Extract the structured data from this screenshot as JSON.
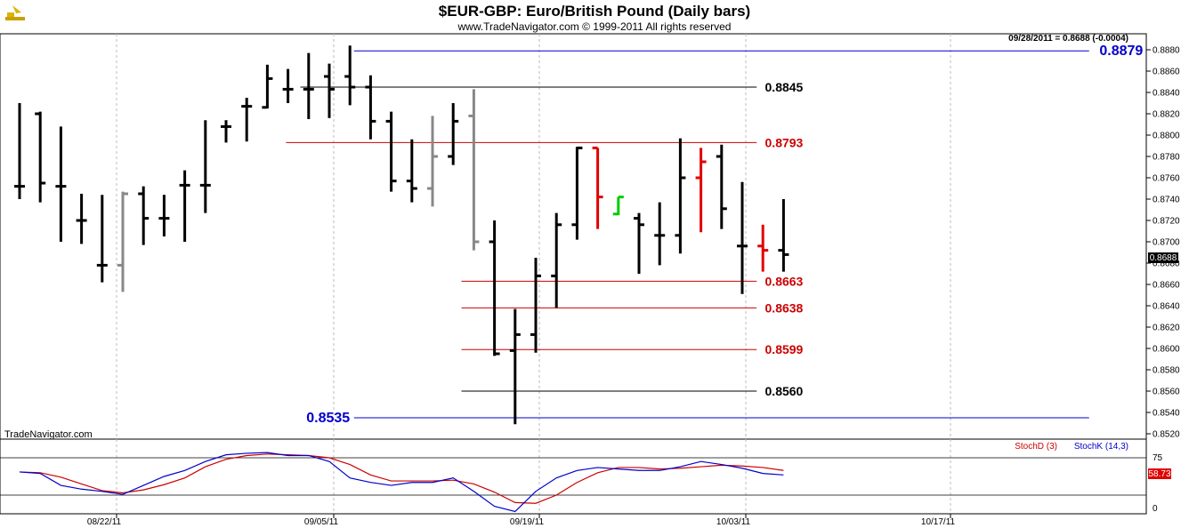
{
  "header": {
    "title": "$EUR-GBP:  Euro/British Pound  (Daily bars)",
    "subtitle": "www.TradeNavigator.com © 1999-2011 All rights reserved",
    "last_quote": "09/28/2011 = 0.8688 (-0.0004)",
    "watermark": "TradeNavigator.com"
  },
  "colors": {
    "up_bar": "#000000",
    "gray_bar": "#888888",
    "red_bar": "#e00000",
    "green_bar": "#00cc00",
    "red_level": "#cc0000",
    "blue_level": "#0000cc",
    "black_level": "#000000",
    "stoch_d": "#cc0000",
    "stoch_k": "#0000cc"
  },
  "chart_data": [
    {
      "type": "ohlc",
      "ylim": [
        0.8515,
        0.8895
      ],
      "yticks": [
        "0.8880",
        "0.8860",
        "0.8840",
        "0.8820",
        "0.8800",
        "0.8780",
        "0.8760",
        "0.8740",
        "0.8720",
        "0.8700",
        "0.8680",
        "0.8660",
        "0.8640",
        "0.8620",
        "0.8600",
        "0.8580",
        "0.8560",
        "0.8540",
        "0.8520"
      ],
      "x_labels": [
        "08/22/11",
        "09/05/11",
        "09/19/11",
        "10/03/11",
        "10/17/11"
      ],
      "last_price_label": "0.8688",
      "bars": [
        {
          "d": "08/10",
          "o": 0.8752,
          "h": 0.883,
          "l": 0.874,
          "c": 0.8752,
          "color": "black"
        },
        {
          "d": "08/11",
          "o": 0.882,
          "h": 0.8822,
          "l": 0.8737,
          "c": 0.8755,
          "color": "black"
        },
        {
          "d": "08/12",
          "o": 0.8752,
          "h": 0.8808,
          "l": 0.87,
          "c": 0.8752,
          "color": "black"
        },
        {
          "d": "08/15",
          "o": 0.872,
          "h": 0.8745,
          "l": 0.8698,
          "c": 0.872,
          "color": "black"
        },
        {
          "d": "08/16",
          "o": 0.8678,
          "h": 0.8744,
          "l": 0.8662,
          "c": 0.8678,
          "color": "black"
        },
        {
          "d": "08/17",
          "o": 0.8678,
          "h": 0.8747,
          "l": 0.8653,
          "c": 0.8745,
          "color": "gray"
        },
        {
          "d": "08/18",
          "o": 0.8745,
          "h": 0.8752,
          "l": 0.8697,
          "c": 0.8722,
          "color": "black"
        },
        {
          "d": "08/19",
          "o": 0.8722,
          "h": 0.8744,
          "l": 0.8705,
          "c": 0.8722,
          "color": "black"
        },
        {
          "d": "08/22",
          "o": 0.8753,
          "h": 0.8767,
          "l": 0.87,
          "c": 0.8753,
          "color": "black"
        },
        {
          "d": "08/23",
          "o": 0.8753,
          "h": 0.8814,
          "l": 0.8727,
          "c": 0.8753,
          "color": "black"
        },
        {
          "d": "08/24",
          "o": 0.8808,
          "h": 0.8814,
          "l": 0.8793,
          "c": 0.8808,
          "color": "black"
        },
        {
          "d": "08/25",
          "o": 0.8827,
          "h": 0.8835,
          "l": 0.8794,
          "c": 0.8827,
          "color": "black"
        },
        {
          "d": "08/26",
          "o": 0.8826,
          "h": 0.8866,
          "l": 0.8825,
          "c": 0.8853,
          "color": "black"
        },
        {
          "d": "08/29",
          "o": 0.8843,
          "h": 0.8862,
          "l": 0.883,
          "c": 0.8843,
          "color": "black"
        },
        {
          "d": "08/30",
          "o": 0.8843,
          "h": 0.8877,
          "l": 0.8815,
          "c": 0.8843,
          "color": "black"
        },
        {
          "d": "08/31",
          "o": 0.8855,
          "h": 0.8867,
          "l": 0.8816,
          "c": 0.8843,
          "color": "black"
        },
        {
          "d": "09/01",
          "o": 0.8855,
          "h": 0.8884,
          "l": 0.8828,
          "c": 0.8845,
          "color": "black"
        },
        {
          "d": "09/02",
          "o": 0.8845,
          "h": 0.8856,
          "l": 0.8796,
          "c": 0.8813,
          "color": "black"
        },
        {
          "d": "09/05",
          "o": 0.8813,
          "h": 0.8822,
          "l": 0.8747,
          "c": 0.8757,
          "color": "black"
        },
        {
          "d": "09/06",
          "o": 0.8757,
          "h": 0.8796,
          "l": 0.8737,
          "c": 0.875,
          "color": "black"
        },
        {
          "d": "09/07",
          "o": 0.875,
          "h": 0.8818,
          "l": 0.8733,
          "c": 0.878,
          "color": "gray"
        },
        {
          "d": "09/08",
          "o": 0.878,
          "h": 0.883,
          "l": 0.8772,
          "c": 0.8813,
          "color": "black"
        },
        {
          "d": "09/09",
          "o": 0.8818,
          "h": 0.8843,
          "l": 0.8692,
          "c": 0.87,
          "color": "gray"
        },
        {
          "d": "09/12",
          "o": 0.87,
          "h": 0.872,
          "l": 0.8593,
          "c": 0.8595,
          "color": "black"
        },
        {
          "d": "09/13",
          "o": 0.8598,
          "h": 0.8637,
          "l": 0.8529,
          "c": 0.8613,
          "color": "black"
        },
        {
          "d": "09/14",
          "o": 0.8613,
          "h": 0.8685,
          "l": 0.8596,
          "c": 0.8668,
          "color": "black"
        },
        {
          "d": "09/15",
          "o": 0.8668,
          "h": 0.8727,
          "l": 0.8638,
          "c": 0.8716,
          "color": "black"
        },
        {
          "d": "09/16",
          "o": 0.8716,
          "h": 0.8789,
          "l": 0.8702,
          "c": 0.8788,
          "color": "black"
        },
        {
          "d": "09/19",
          "o": 0.8788,
          "h": 0.8788,
          "l": 0.8712,
          "c": 0.8742,
          "color": "red"
        },
        {
          "d": "09/20",
          "o": 0.8726,
          "h": 0.8742,
          "l": 0.8725,
          "c": 0.8742,
          "color": "green"
        },
        {
          "d": "09/21",
          "o": 0.8722,
          "h": 0.8727,
          "l": 0.867,
          "c": 0.8716,
          "color": "black"
        },
        {
          "d": "09/22",
          "o": 0.8706,
          "h": 0.8737,
          "l": 0.8678,
          "c": 0.8706,
          "color": "black"
        },
        {
          "d": "09/23",
          "o": 0.8706,
          "h": 0.8797,
          "l": 0.8689,
          "c": 0.876,
          "color": "black"
        },
        {
          "d": "09/26",
          "o": 0.876,
          "h": 0.8788,
          "l": 0.8709,
          "c": 0.8775,
          "color": "red"
        },
        {
          "d": "09/27",
          "o": 0.878,
          "h": 0.8791,
          "l": 0.8712,
          "c": 0.8731,
          "color": "black"
        },
        {
          "d": "09/28",
          "o": 0.8696,
          "h": 0.8756,
          "l": 0.8651,
          "c": 0.8696,
          "color": "black"
        },
        {
          "d": "09/29",
          "o": 0.8696,
          "h": 0.8716,
          "l": 0.8672,
          "c": 0.8692,
          "color": "red"
        },
        {
          "d": "09/30",
          "o": 0.8692,
          "h": 0.874,
          "l": 0.8672,
          "c": 0.8688,
          "color": "black"
        }
      ],
      "levels": [
        {
          "value": 0.8879,
          "label": "0.8879",
          "color": "blue",
          "from": 16.2,
          "to": 51.8,
          "label_side": "right",
          "label_x": 52.3
        },
        {
          "value": 0.8845,
          "label": "0.8845",
          "color": "black",
          "from": 13.6,
          "to": 35.7,
          "label_side": "right",
          "label_x": 36.1
        },
        {
          "value": 0.8793,
          "label": "0.8793",
          "color": "red",
          "from": 12.9,
          "to": 35.7,
          "label_side": "right",
          "label_x": 36.1
        },
        {
          "value": 0.8663,
          "label": "0.8663",
          "color": "red",
          "from": 21.4,
          "to": 35.7,
          "label_side": "right",
          "label_x": 36.1
        },
        {
          "value": 0.8638,
          "label": "0.8638",
          "color": "red",
          "from": 21.4,
          "to": 35.7,
          "label_side": "right",
          "label_x": 36.1
        },
        {
          "value": 0.8599,
          "label": "0.8599",
          "color": "red",
          "from": 21.4,
          "to": 35.7,
          "label_side": "right",
          "label_x": 36.1
        },
        {
          "value": 0.856,
          "label": "0.8560",
          "color": "black",
          "from": 21.4,
          "to": 35.7,
          "label_side": "right",
          "label_x": 36.1
        },
        {
          "value": 0.8535,
          "label": "0.8535",
          "color": "blue",
          "from": 16.2,
          "to": 51.8,
          "label_side": "left",
          "label_x": 16.0
        }
      ]
    },
    {
      "type": "line",
      "title": "",
      "ylim": [
        0,
        100
      ],
      "yticks": [
        "75",
        "0"
      ],
      "last_value_label": "58.73",
      "series": [
        {
          "name": "StochD (3)",
          "color": "red",
          "values": [
            56,
            55,
            49,
            40,
            31,
            28,
            32,
            39,
            48,
            63,
            73,
            78,
            80,
            79,
            78,
            75,
            66,
            52,
            44,
            44,
            44,
            45,
            40,
            29,
            15,
            14,
            25,
            42,
            55,
            62,
            62,
            60,
            61,
            63,
            65,
            64,
            62,
            58
          ]
        },
        {
          "name": "StochK (14,3)",
          "color": "blue",
          "values": [
            56,
            54,
            38,
            33,
            30,
            26,
            38,
            50,
            58,
            70,
            79,
            81,
            82,
            78,
            78,
            70,
            48,
            42,
            38,
            42,
            42,
            48,
            30,
            10,
            3,
            30,
            48,
            58,
            62,
            60,
            58,
            58,
            63,
            70,
            66,
            61,
            54,
            52
          ]
        }
      ]
    }
  ]
}
